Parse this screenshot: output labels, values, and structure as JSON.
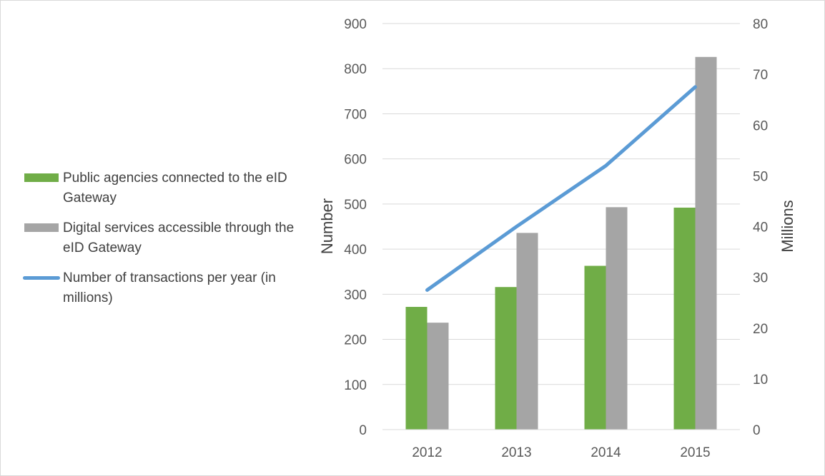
{
  "chart_data": {
    "type": "bar",
    "categories": [
      "2012",
      "2013",
      "2014",
      "2015"
    ],
    "series": [
      {
        "name": "Public agencies connected to the eID Gateway",
        "kind": "bar",
        "axis": "left",
        "color": "#70ad47",
        "values": [
          272,
          316,
          363,
          492
        ]
      },
      {
        "name": "Digital services accessible through the eID Gateway",
        "kind": "bar",
        "axis": "left",
        "color": "#a5a5a5",
        "values": [
          237,
          436,
          493,
          826
        ]
      },
      {
        "name": "Number of transactions per year (in millions)",
        "kind": "line",
        "axis": "right",
        "color": "#5b9bd5",
        "values": [
          27.5,
          40,
          52,
          67.5
        ]
      }
    ],
    "ylabel": "Number",
    "y2label": "Millions",
    "ylim": [
      0,
      900
    ],
    "yticks": [
      "0",
      "100",
      "200",
      "300",
      "400",
      "500",
      "600",
      "700",
      "800",
      "900"
    ],
    "y2lim": [
      0,
      80
    ],
    "y2ticks": [
      "0",
      "10",
      "20",
      "30",
      "40",
      "50",
      "60",
      "70",
      "80"
    ],
    "grid": true,
    "legend_position": "left"
  }
}
